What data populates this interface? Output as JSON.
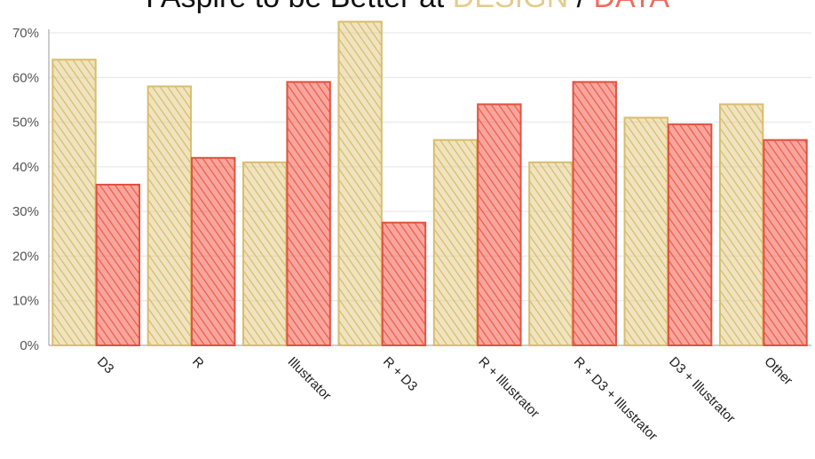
{
  "title": {
    "prefix": "I Aspire to be Better at ",
    "design_word": "DESIGN",
    "separator": " / ",
    "data_word": "DATA"
  },
  "colors": {
    "design": "#e3cc8b",
    "data": "#f26b5b",
    "design_stroke": "#d9bd6e",
    "data_stroke": "#e4513f",
    "grid": "#e4e4e4"
  },
  "chart_data": {
    "type": "bar",
    "title": "I Aspire to be Better at DESIGN / DATA",
    "categories": [
      "D3",
      "R",
      "Illustrator",
      "R + D3",
      "R + Illustrator",
      "R + D3 + Illustrator",
      "D3 + Illustrator",
      "Other"
    ],
    "series": [
      {
        "name": "DESIGN",
        "values": [
          64,
          58,
          41,
          72.5,
          46,
          41,
          51,
          54
        ]
      },
      {
        "name": "DATA",
        "values": [
          36,
          42,
          59,
          27.5,
          54,
          59,
          49.5,
          46
        ]
      }
    ],
    "ylim": [
      0,
      70
    ],
    "yticks": [
      "0%",
      "10%",
      "20%",
      "30%",
      "40%",
      "50%",
      "60%",
      "70%"
    ],
    "grid": true,
    "legend": "none"
  }
}
